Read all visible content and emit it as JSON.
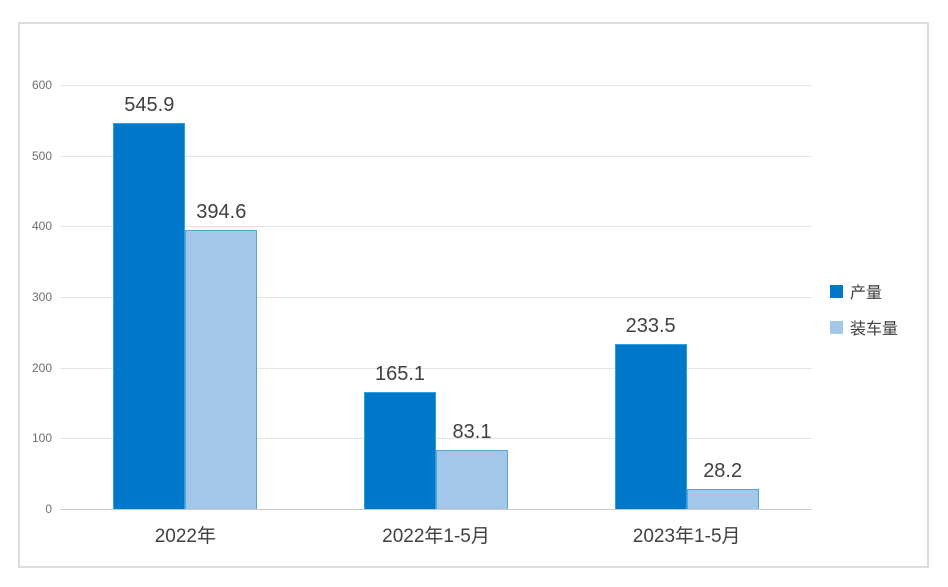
{
  "chart_data": {
    "type": "bar",
    "title": "",
    "xlabel": "",
    "ylabel": "",
    "categories": [
      "2022年",
      "2022年1-5月",
      "2023年1-5月"
    ],
    "series": [
      {
        "name": "产量",
        "values": [
          545.9,
          165.1,
          233.5
        ],
        "color": "#0077C8",
        "border_color": "#2BA2E0"
      },
      {
        "name": "装车量",
        "values": [
          394.6,
          83.1,
          28.2
        ],
        "color": "#A2C7E8",
        "border_color": "#56A4DC"
      }
    ],
    "data_labels": [
      "545.9",
      "394.6",
      "165.1",
      "83.1",
      "233.5",
      "28.2"
    ],
    "ylim": [
      0,
      600
    ],
    "yticks": [
      0,
      100,
      200,
      300,
      400,
      500,
      600
    ],
    "grid": true,
    "legend_position": "right"
  },
  "colors": {
    "frame_border": "#dcdcdc",
    "gridline": "#e4e4e4",
    "axis_line": "#c9c9c9",
    "label_text": "#404040",
    "tick_text": "#6e6e6e"
  }
}
